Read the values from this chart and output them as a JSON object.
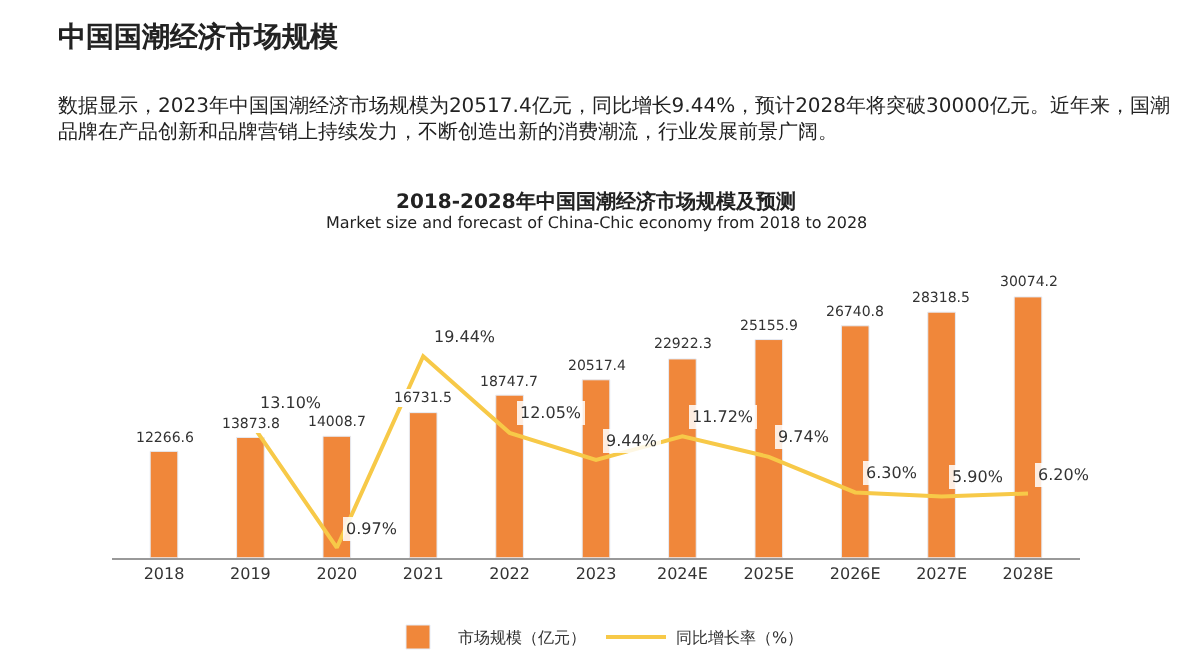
{
  "chart_data": {
    "type": "bar",
    "title": "中国国潮经济市场规模",
    "subtitle": "数据显示，2023年中国国潮经济市场规模为20517.4亿元，同比增长9.44%，预计2028年将突破30000亿元。近年来，国潮品牌在产品创新和品牌营销上持续发力，不断创造出新的消费潮流，行业发展前景广阔。",
    "annotations": [
      "2018-2028年中国国潮经济市场规模及预测",
      "Market size and forecast of China-Chic economy from 2018 to 2028"
    ],
    "categories": [
      "2018",
      "2019",
      "2020",
      "2021",
      "2022",
      "2023",
      "2024E",
      "2025E",
      "2026E",
      "2027E",
      "2028E"
    ],
    "series": [
      {
        "name": "市场规模（亿元）",
        "color": "#f0873a",
        "values": [
          12266.6,
          13873.8,
          14008.7,
          16731.5,
          18747.7,
          20517.4,
          22922.3,
          25155.9,
          26740.8,
          28318.5,
          30074.2
        ],
        "value_labels": [
          "12266.6",
          "13873.8",
          "14008.7",
          "16731.5",
          "18747.7",
          "20517.4",
          "22922.3",
          "25155.9",
          "26740.8",
          "28318.5",
          "30074.2"
        ]
      },
      {
        "name": "同比增长率（%）",
        "type": "line",
        "axis": "y2",
        "color": "#f7c948",
        "values": [
          null,
          13.1,
          0.97,
          19.44,
          12.05,
          9.44,
          11.72,
          9.74,
          6.3,
          5.9,
          6.2
        ],
        "value_labels": [
          null,
          "13.10%",
          "0.97%",
          "19.44%",
          "12.05%",
          "9.44%",
          "11.72%",
          "9.74%",
          "6.30%",
          "5.90%",
          "6.20%"
        ]
      }
    ],
    "legend": "bottom",
    "marker": "none",
    "line_style": "solid",
    "tick_labels": "x"
  }
}
